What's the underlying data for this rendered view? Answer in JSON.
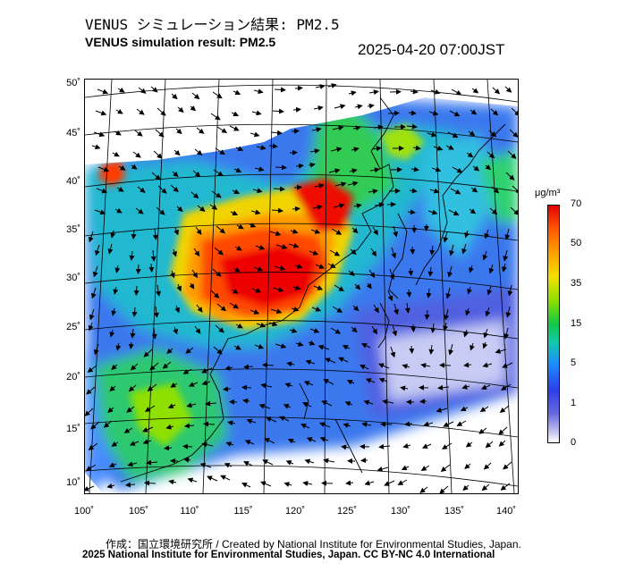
{
  "header": {
    "title_jp": "VENUS シミュレーション結果: PM2.5",
    "title_en": "VENUS simulation result: PM2.5",
    "timestamp": "2025-04-20 07:00JST"
  },
  "map": {
    "lat_labels": [
      "50˚",
      "45˚",
      "40˚",
      "35˚",
      "30˚",
      "25˚",
      "20˚",
      "15˚",
      "10˚"
    ],
    "lon_labels": [
      "100˚",
      "105˚",
      "110˚",
      "115˚",
      "120˚",
      "125˚",
      "130˚",
      "135˚",
      "140˚"
    ],
    "lat_values": [
      50,
      45,
      40,
      35,
      30,
      25,
      20,
      15,
      10
    ],
    "lon_values": [
      100,
      105,
      110,
      115,
      120,
      125,
      130,
      135,
      140
    ],
    "field": "PM2.5 concentration",
    "vectors": "wind"
  },
  "colorbar": {
    "unit": "μg/m³",
    "ticks": [
      "70",
      "50",
      "35",
      "15",
      "5",
      "1",
      "0"
    ],
    "colors": [
      "#e40000",
      "#ff5a00",
      "#ffa000",
      "#f4e000",
      "#8fe000",
      "#12c844",
      "#12c8b0",
      "#1c8cff",
      "#2a40e6",
      "#6a6ae0",
      "#ffffff"
    ]
  },
  "footer": {
    "credit_jp_en": "作成：国立環境研究所 / Created by National Institute for Environmental Studies, Japan.",
    "copyright": "2025 National Institute for Environmental Studies, Japan. CC BY-NC 4.0 International"
  }
}
